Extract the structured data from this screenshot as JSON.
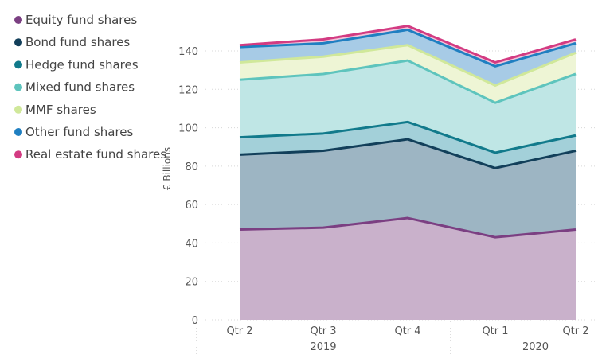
{
  "chart_data": {
    "type": "area",
    "stacked": true,
    "title": "",
    "ylabel": "€ Billions",
    "ylim": [
      0,
      150
    ],
    "yticks": [
      0,
      20,
      40,
      60,
      80,
      100,
      120,
      140
    ],
    "grid": true,
    "legend_position": "left",
    "categories": [
      "Qtr 2",
      "Qtr 3",
      "Qtr 4",
      "Qtr 1",
      "Qtr 2"
    ],
    "year_groups": [
      {
        "label": "2019",
        "count": 3
      },
      {
        "label": "2020",
        "count": 2
      }
    ],
    "series": [
      {
        "name": "Equity fund shares",
        "color": "#7b3f82",
        "fill": "#c9b1cb",
        "values": [
          47,
          48,
          53,
          43,
          47
        ]
      },
      {
        "name": "Bond fund shares",
        "color": "#123f5a",
        "fill": "#9db5c3",
        "values": [
          39,
          40,
          41,
          36,
          41
        ]
      },
      {
        "name": "Hedge fund shares",
        "color": "#117a8b",
        "fill": "#a3d0d9",
        "values": [
          9,
          9,
          9,
          8,
          8
        ]
      },
      {
        "name": "Mixed fund shares",
        "color": "#5ec4bd",
        "fill": "#bfe6e5",
        "values": [
          30,
          31,
          32,
          26,
          32
        ]
      },
      {
        "name": "MMF shares",
        "color": "#d0e89a",
        "fill": "#eef5d5",
        "values": [
          9,
          9,
          8,
          9,
          11
        ]
      },
      {
        "name": "Other fund shares",
        "color": "#1f7fc1",
        "fill": "#a7cbe6",
        "values": [
          8,
          7,
          8,
          10,
          5
        ]
      },
      {
        "name": "Real estate fund shares",
        "color": "#d33b82",
        "fill": "#f2c3d8",
        "values": [
          1,
          2,
          2,
          2,
          2
        ]
      }
    ]
  }
}
